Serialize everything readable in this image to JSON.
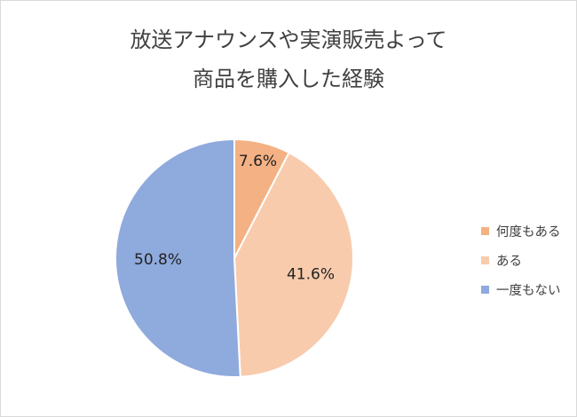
{
  "chart_data": {
    "type": "pie",
    "title": [
      "放送アナウンスや実演販売よって",
      "商品を購入した経験"
    ],
    "categories": [
      "何度もある",
      "ある",
      "一度もない"
    ],
    "values": [
      7.6,
      41.6,
      50.8
    ],
    "data_labels": [
      "7.6%",
      "41.6%",
      "50.8%"
    ],
    "colors": [
      "#f4b183",
      "#f8cbad",
      "#8faadc"
    ],
    "start_angle_deg": 0,
    "direction": "clockwise",
    "legend_position": "right"
  }
}
